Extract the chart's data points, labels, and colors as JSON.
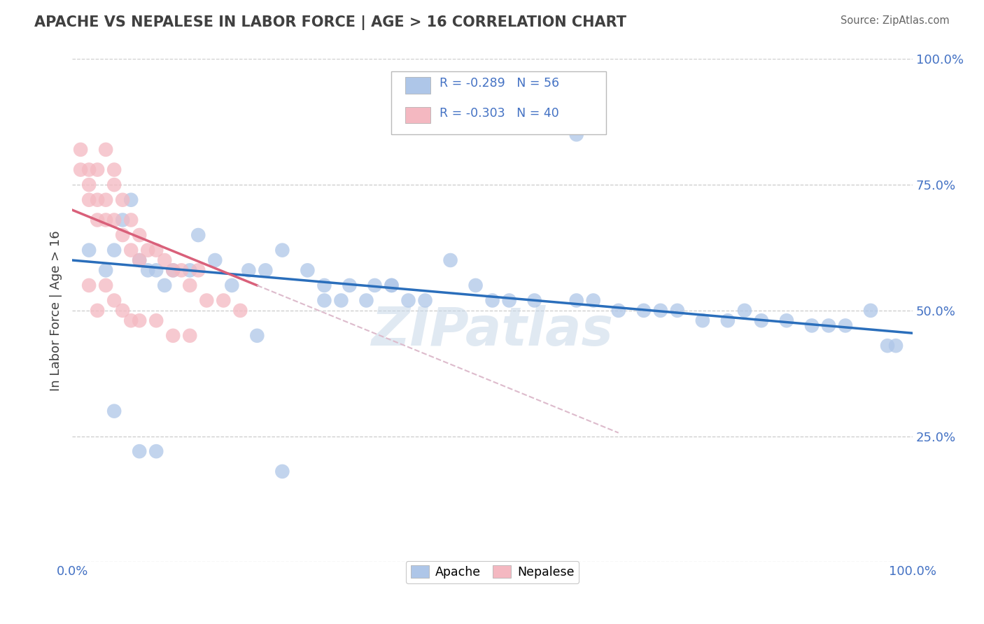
{
  "title": "APACHE VS NEPALESE IN LABOR FORCE | AGE > 16 CORRELATION CHART",
  "source_text": "Source: ZipAtlas.com",
  "ylabel": "In Labor Force | Age > 16",
  "watermark": "ZIPatlas",
  "legend_apache_r": "R = -0.289",
  "legend_apache_n": "N = 56",
  "legend_nepalese_r": "R = -0.303",
  "legend_nepalese_n": "N = 40",
  "apache_color": "#aec6e8",
  "nepalese_color": "#f4b8c1",
  "trendline_apache_color": "#2a6ebb",
  "trendline_nepalese_color": "#d9607a",
  "trendline_nepalese_dashed_color": "#ddbbcc",
  "title_color": "#404040",
  "axis_label_color": "#4472c4",
  "legend_text_color": "#4472c4",
  "apache_x": [
    0.02,
    0.04,
    0.05,
    0.06,
    0.07,
    0.08,
    0.09,
    0.1,
    0.11,
    0.12,
    0.14,
    0.15,
    0.17,
    0.19,
    0.21,
    0.23,
    0.25,
    0.28,
    0.3,
    0.33,
    0.36,
    0.38,
    0.4,
    0.42,
    0.45,
    0.48,
    0.3,
    0.32,
    0.35,
    0.38,
    0.5,
    0.52,
    0.55,
    0.6,
    0.62,
    0.65,
    0.68,
    0.7,
    0.72,
    0.75,
    0.78,
    0.8,
    0.82,
    0.85,
    0.88,
    0.9,
    0.92,
    0.95,
    0.97,
    0.98,
    0.05,
    0.08,
    0.1,
    0.22,
    0.25,
    0.6
  ],
  "apache_y": [
    0.62,
    0.58,
    0.62,
    0.68,
    0.72,
    0.6,
    0.58,
    0.58,
    0.55,
    0.58,
    0.58,
    0.65,
    0.6,
    0.55,
    0.58,
    0.58,
    0.62,
    0.58,
    0.55,
    0.55,
    0.55,
    0.55,
    0.52,
    0.52,
    0.6,
    0.55,
    0.52,
    0.52,
    0.52,
    0.55,
    0.52,
    0.52,
    0.52,
    0.52,
    0.52,
    0.5,
    0.5,
    0.5,
    0.5,
    0.48,
    0.48,
    0.5,
    0.48,
    0.48,
    0.47,
    0.47,
    0.47,
    0.5,
    0.43,
    0.43,
    0.3,
    0.22,
    0.22,
    0.45,
    0.18,
    0.85
  ],
  "nepalese_x": [
    0.01,
    0.01,
    0.02,
    0.02,
    0.02,
    0.03,
    0.03,
    0.03,
    0.04,
    0.04,
    0.04,
    0.05,
    0.05,
    0.05,
    0.06,
    0.06,
    0.07,
    0.07,
    0.08,
    0.08,
    0.09,
    0.1,
    0.11,
    0.12,
    0.13,
    0.14,
    0.15,
    0.16,
    0.18,
    0.2,
    0.02,
    0.03,
    0.04,
    0.05,
    0.06,
    0.07,
    0.08,
    0.1,
    0.12,
    0.14
  ],
  "nepalese_y": [
    0.78,
    0.82,
    0.78,
    0.75,
    0.72,
    0.78,
    0.72,
    0.68,
    0.72,
    0.68,
    0.82,
    0.75,
    0.68,
    0.78,
    0.72,
    0.65,
    0.68,
    0.62,
    0.65,
    0.6,
    0.62,
    0.62,
    0.6,
    0.58,
    0.58,
    0.55,
    0.58,
    0.52,
    0.52,
    0.5,
    0.55,
    0.5,
    0.55,
    0.52,
    0.5,
    0.48,
    0.48,
    0.48,
    0.45,
    0.45
  ],
  "xlim": [
    0.0,
    1.0
  ],
  "ylim": [
    0.0,
    1.0
  ],
  "ytick_positions": [
    0.0,
    0.25,
    0.5,
    0.75,
    1.0
  ],
  "ytick_labels": [
    "",
    "25.0%",
    "50.0%",
    "75.0%",
    "100.0%"
  ]
}
